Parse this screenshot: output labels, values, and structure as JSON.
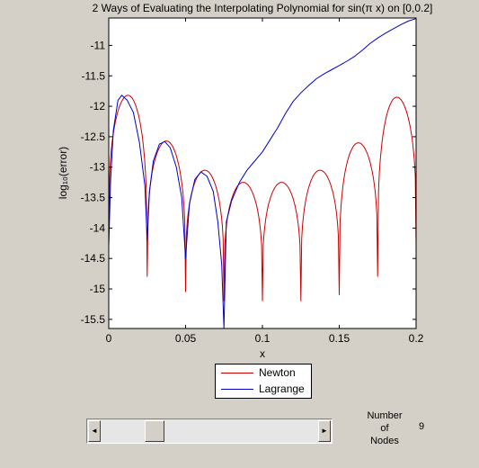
{
  "chart_data": {
    "type": "line",
    "title": "2 Ways of Evaluating the Interpolating Polynomial for sin(π x) on [0,0.2]",
    "xlabel": "x",
    "ylabel": "log₁₀(error)",
    "xlim": [
      0,
      0.2
    ],
    "ylim": [
      -15.65,
      -10.55
    ],
    "xticks": [
      0,
      0.05,
      0.1,
      0.15,
      0.2
    ],
    "xtick_labels": [
      "0",
      "0.05",
      "0.1",
      "0.15",
      "0.2"
    ],
    "yticks": [
      -11,
      -11.5,
      -12,
      -12.5,
      -13,
      -13.5,
      -14,
      -14.5,
      -15,
      -15.5
    ],
    "ytick_labels": [
      "-11",
      "-11.5",
      "-12",
      "-12.5",
      "-13",
      "-13.5",
      "-14",
      "-14.5",
      "-15",
      "-15.5"
    ],
    "grid": false,
    "legend_position": "below",
    "series": [
      {
        "name": "Newton",
        "color": "#cc0000",
        "nodes": [
          0,
          0.025,
          0.05,
          0.075,
          0.1,
          0.125,
          0.15,
          0.175,
          0.2
        ],
        "lobe_peaks": [
          -11.82,
          -12.57,
          -13.05,
          -13.25,
          -13.25,
          -13.05,
          -12.6,
          -11.85
        ],
        "dip_minima": [
          -14.3,
          -14.8,
          -15.05,
          -15.2,
          -15.2,
          -15.2,
          -15.1,
          -14.8,
          -14.3
        ]
      },
      {
        "name": "Lagrange",
        "color": "#0000cc",
        "points": [
          [
            0,
            -14.3
          ],
          [
            0.0012,
            -13.2
          ],
          [
            0.003,
            -12.4
          ],
          [
            0.006,
            -11.9
          ],
          [
            0.0085,
            -11.82
          ],
          [
            0.012,
            -11.9
          ],
          [
            0.016,
            -12.1
          ],
          [
            0.02,
            -12.6
          ],
          [
            0.0235,
            -13.3
          ],
          [
            0.025,
            -14.2
          ],
          [
            0.0265,
            -13.4
          ],
          [
            0.029,
            -12.9
          ],
          [
            0.033,
            -12.62
          ],
          [
            0.0365,
            -12.58
          ],
          [
            0.04,
            -12.68
          ],
          [
            0.044,
            -13.0
          ],
          [
            0.0475,
            -13.5
          ],
          [
            0.05,
            -14.5
          ],
          [
            0.0505,
            -14.3
          ],
          [
            0.0525,
            -13.6
          ],
          [
            0.056,
            -13.2
          ],
          [
            0.06,
            -13.08
          ],
          [
            0.064,
            -13.15
          ],
          [
            0.068,
            -13.4
          ],
          [
            0.071,
            -13.9
          ],
          [
            0.0735,
            -14.6
          ],
          [
            0.075,
            -15.7
          ],
          [
            0.0765,
            -13.9
          ],
          [
            0.08,
            -13.55
          ],
          [
            0.085,
            -13.25
          ],
          [
            0.09,
            -13.05
          ],
          [
            0.095,
            -12.9
          ],
          [
            0.1,
            -12.75
          ],
          [
            0.105,
            -12.55
          ],
          [
            0.11,
            -12.35
          ],
          [
            0.115,
            -12.12
          ],
          [
            0.12,
            -11.92
          ],
          [
            0.125,
            -11.78
          ],
          [
            0.13,
            -11.66
          ],
          [
            0.135,
            -11.55
          ],
          [
            0.14,
            -11.47
          ],
          [
            0.145,
            -11.4
          ],
          [
            0.15,
            -11.33
          ],
          [
            0.155,
            -11.26
          ],
          [
            0.16,
            -11.18
          ],
          [
            0.165,
            -11.08
          ],
          [
            0.17,
            -10.97
          ],
          [
            0.175,
            -10.88
          ],
          [
            0.18,
            -10.8
          ],
          [
            0.185,
            -10.73
          ],
          [
            0.19,
            -10.66
          ],
          [
            0.195,
            -10.6
          ],
          [
            0.2,
            -10.56
          ]
        ]
      }
    ]
  },
  "controls": {
    "nodes_label": [
      "Number",
      "of",
      "Nodes"
    ],
    "nodes_value": "9",
    "slider_left_glyph": "◄",
    "slider_right_glyph": "►",
    "slider_value": 9,
    "slider_range": [
      3,
      30
    ]
  }
}
